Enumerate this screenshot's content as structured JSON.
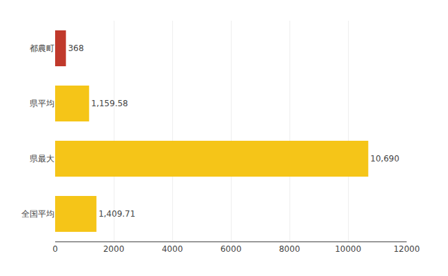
{
  "chart_data": {
    "type": "bar",
    "orientation": "horizontal",
    "categories": [
      "都農町",
      "県平均",
      "県最大",
      "全国平均"
    ],
    "values": [
      368,
      1159.58,
      10690,
      1409.71
    ],
    "value_labels": [
      "368",
      "1,159.58",
      "10,690",
      "1,409.71"
    ],
    "data_labels": true,
    "colors": [
      "#C0392B",
      "#F5C518",
      "#F5C518",
      "#F5C518"
    ],
    "xlim": [
      0,
      12000
    ],
    "xticks": [
      0,
      2000,
      4000,
      6000,
      8000,
      10000,
      12000
    ],
    "grid": true
  }
}
